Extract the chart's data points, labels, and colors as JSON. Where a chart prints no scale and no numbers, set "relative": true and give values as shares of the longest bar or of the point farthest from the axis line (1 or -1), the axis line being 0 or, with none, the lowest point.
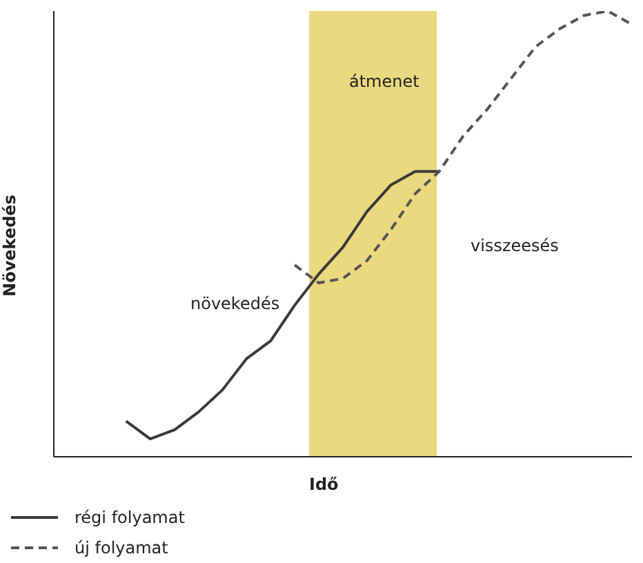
{
  "chart_data": {
    "type": "line",
    "relative": true,
    "xlabel": "Idő",
    "ylabel": "Növekedés",
    "legend": "bottom left",
    "marker": "none",
    "categories": [
      null,
      null,
      null,
      null,
      null,
      null,
      null,
      null,
      null,
      null,
      null,
      null,
      null,
      null,
      null,
      null,
      null,
      null,
      null,
      null,
      null,
      null,
      null,
      null,
      null
    ],
    "series": [
      {
        "name": "régi folyamat",
        "color": "#3a3a3a",
        "line_style": "solid",
        "values": [
          null,
          null,
          null,
          0.08,
          0.04,
          0.06,
          0.1,
          0.15,
          0.22,
          0.26,
          0.34,
          0.41,
          0.47,
          0.55,
          0.61,
          0.64,
          0.64,
          null,
          null,
          null,
          null,
          null,
          null,
          null,
          null
        ]
      },
      {
        "name": "új folyamat",
        "color": "#555555",
        "line_style": "dashed",
        "values": [
          null,
          null,
          null,
          null,
          null,
          null,
          null,
          null,
          null,
          null,
          0.43,
          0.39,
          0.4,
          0.44,
          0.51,
          0.59,
          0.64,
          0.72,
          0.78,
          0.85,
          0.92,
          0.96,
          0.99,
          1.0,
          0.97
        ]
      }
    ],
    "annotations": [
      "növekedés",
      "visszeesés",
      "átmenet"
    ]
  }
}
